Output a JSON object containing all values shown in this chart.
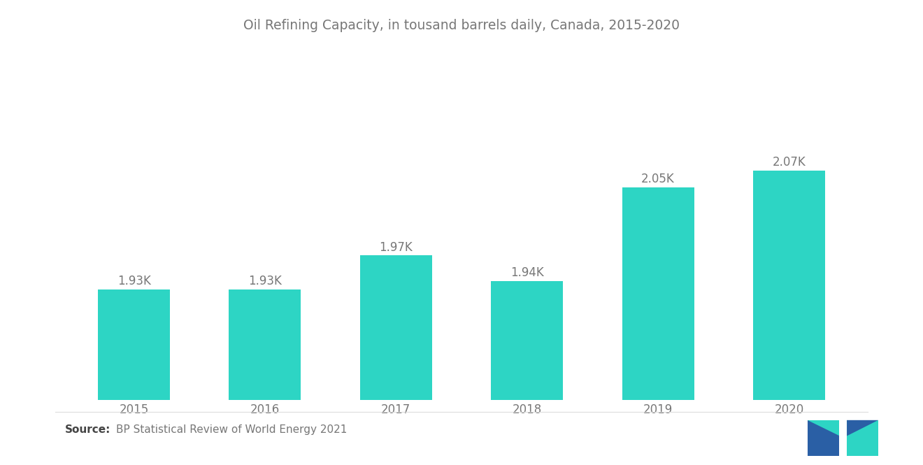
{
  "title": "Oil Refining Capacity, in tousand barrels daily, Canada, 2015-2020",
  "categories": [
    "2015",
    "2016",
    "2017",
    "2018",
    "2019",
    "2020"
  ],
  "values": [
    1930,
    1930,
    1970,
    1940,
    2050,
    2070
  ],
  "labels": [
    "1.93K",
    "1.93K",
    "1.97K",
    "1.94K",
    "2.05K",
    "2.07K"
  ],
  "bar_color": "#2dd5c4",
  "background_color": "#ffffff",
  "source_bold": "Source:",
  "source_normal": "  BP Statistical Review of World Energy 2021",
  "title_fontsize": 13.5,
  "label_fontsize": 12,
  "tick_fontsize": 12,
  "source_fontsize": 11,
  "ylim_min": 1800,
  "ylim_max": 2150,
  "text_color": "#777777",
  "bar_width": 0.55,
  "logo_blue": "#2a5fa5",
  "logo_teal": "#2dd5c4"
}
